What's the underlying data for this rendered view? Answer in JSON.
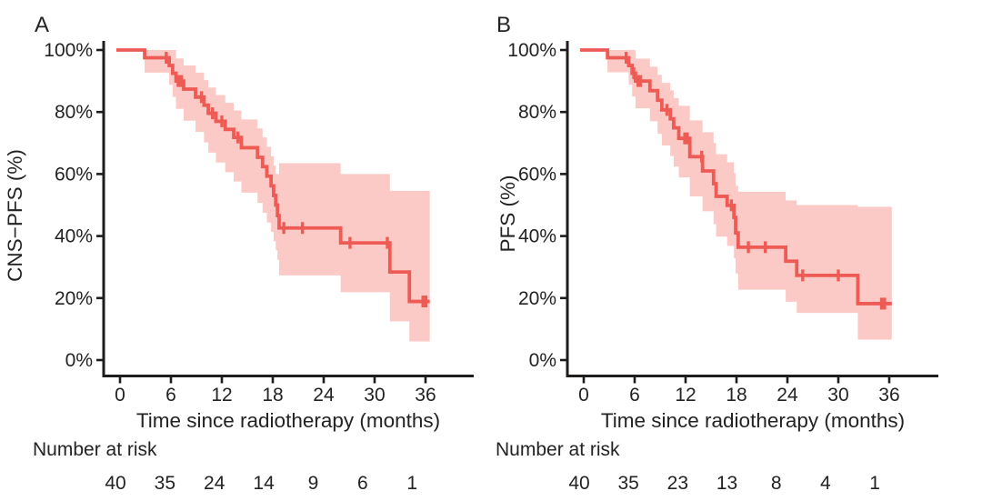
{
  "figure_title": "",
  "colors": {
    "curve": "#ee5b55",
    "band": "#fbcac6",
    "axis": "#1f1c1c",
    "text": "#232323"
  },
  "panels": [
    {
      "label": "A",
      "y_label": "CNS−PFS (%)",
      "x_label": "Time since radiotherapy (months)",
      "y_tick_labels": [
        "0%",
        "20%",
        "40%",
        "60%",
        "80%",
        "100%"
      ],
      "x_tick_labels": [
        "0",
        "6",
        "12",
        "18",
        "24",
        "30",
        "36"
      ],
      "risk_label": "Number at risk",
      "risk_values": [
        "40",
        "35",
        "24",
        "14",
        "9",
        "6",
        "1"
      ]
    },
    {
      "label": "B",
      "y_label": "PFS (%)",
      "x_label": "Time since radiotherapy (months)",
      "y_tick_labels": [
        "0%",
        "20%",
        "40%",
        "60%",
        "80%",
        "100%"
      ],
      "x_tick_labels": [
        "0",
        "6",
        "12",
        "18",
        "24",
        "30",
        "36"
      ],
      "risk_label": "Number at risk",
      "risk_values": [
        "40",
        "35",
        "23",
        "13",
        "8",
        "4",
        "1"
      ]
    }
  ],
  "chart_data": [
    {
      "type": "line",
      "subtype": "kaplan-meier",
      "panel": "A",
      "title": "",
      "xlabel": "Time since radiotherapy (months)",
      "ylabel": "CNS−PFS (%)",
      "xlim": [
        -2,
        42
      ],
      "ylim": [
        0,
        100
      ],
      "x_ticks": [
        0,
        6,
        12,
        18,
        24,
        30,
        36
      ],
      "y_ticks": [
        0,
        20,
        40,
        60,
        80,
        100
      ],
      "grid": false,
      "legend": "none",
      "start_survival": 100,
      "end_time": 36.5,
      "steps": [
        [
          2.9,
          97.5
        ],
        [
          5.8,
          95
        ],
        [
          6.2,
          92.5
        ],
        [
          6.6,
          90
        ],
        [
          7.5,
          87.4
        ],
        [
          8.9,
          84.8
        ],
        [
          9.9,
          82.2
        ],
        [
          10.4,
          79.6
        ],
        [
          11.3,
          77
        ],
        [
          12.4,
          74.4
        ],
        [
          13.4,
          71.8
        ],
        [
          14.3,
          68.5
        ],
        [
          16.2,
          65.4
        ],
        [
          16.8,
          62.4
        ],
        [
          17.3,
          59.3
        ],
        [
          17.8,
          56.2
        ],
        [
          18.1,
          53.1
        ],
        [
          18.35,
          50
        ],
        [
          18.55,
          46.6
        ],
        [
          18.75,
          42.6
        ],
        [
          26,
          37.8
        ],
        [
          31.8,
          28.4
        ],
        [
          34.1,
          18.9
        ]
      ],
      "censor_marks": [
        [
          5.45,
          97.5
        ],
        [
          6.85,
          90
        ],
        [
          7.05,
          90
        ],
        [
          7.25,
          90
        ],
        [
          9.6,
          84.8
        ],
        [
          10.9,
          79.6
        ],
        [
          12,
          77
        ],
        [
          13.9,
          71.8
        ],
        [
          19.3,
          42.6
        ],
        [
          21.5,
          42.6
        ],
        [
          27.1,
          37.8
        ],
        [
          31.5,
          37.8
        ],
        [
          35.7,
          18.9
        ],
        [
          36.05,
          18.9
        ]
      ],
      "ci_steps": [
        [
          2.9,
          92.7,
          100
        ],
        [
          5.8,
          88.8,
          100
        ],
        [
          6.2,
          84.9,
          100
        ],
        [
          6.6,
          81,
          97.3
        ],
        [
          7.5,
          77.2,
          95
        ],
        [
          8.9,
          73.6,
          92.7
        ],
        [
          9.9,
          70.2,
          90.3
        ],
        [
          10.4,
          66.9,
          87.9
        ],
        [
          11.3,
          63.7,
          85.5
        ],
        [
          12.4,
          60.6,
          83
        ],
        [
          13.4,
          57.6,
          80.5
        ],
        [
          14.3,
          54,
          77.6
        ],
        [
          16.2,
          50.7,
          74.7
        ],
        [
          16.8,
          47.5,
          71.8
        ],
        [
          17.3,
          44.3,
          68.8
        ],
        [
          17.8,
          41.3,
          65.8
        ],
        [
          18.1,
          38.3,
          62.7
        ],
        [
          18.35,
          35.4,
          60
        ],
        [
          18.55,
          32.3,
          60
        ],
        [
          18.75,
          27.3,
          63.5
        ],
        [
          26,
          21.9,
          60
        ],
        [
          31.8,
          12.5,
          54.6
        ],
        [
          34.1,
          6,
          54.6
        ]
      ],
      "number_at_risk": {
        "times": [
          0,
          6,
          12,
          18,
          24,
          30,
          36
        ],
        "values": [
          40,
          35,
          24,
          14,
          9,
          6,
          1
        ]
      }
    },
    {
      "type": "line",
      "subtype": "kaplan-meier",
      "panel": "B",
      "title": "",
      "xlabel": "Time since radiotherapy (months)",
      "ylabel": "PFS (%)",
      "xlim": [
        -2,
        42
      ],
      "ylim": [
        0,
        100
      ],
      "x_ticks": [
        0,
        6,
        12,
        18,
        24,
        30,
        36
      ],
      "y_ticks": [
        0,
        20,
        40,
        60,
        80,
        100
      ],
      "grid": false,
      "legend": "none",
      "start_survival": 100,
      "end_time": 36.3,
      "steps": [
        [
          2.8,
          97.5
        ],
        [
          5.3,
          95
        ],
        [
          5.7,
          92.5
        ],
        [
          6.1,
          90
        ],
        [
          7.8,
          86.9
        ],
        [
          8.7,
          83.8
        ],
        [
          9.2,
          80.7
        ],
        [
          10.2,
          77.8
        ],
        [
          10.6,
          74.9
        ],
        [
          11.2,
          71.5
        ],
        [
          12.5,
          65.6
        ],
        [
          14,
          61
        ],
        [
          15.3,
          56.9
        ],
        [
          15.6,
          52.8
        ],
        [
          16.9,
          49.9
        ],
        [
          17.7,
          46
        ],
        [
          17.9,
          41
        ],
        [
          18.2,
          36.4
        ],
        [
          23.8,
          31.9
        ],
        [
          25.1,
          27.3
        ],
        [
          32.3,
          18.2
        ]
      ],
      "censor_marks": [
        [
          5,
          97.5
        ],
        [
          5.9,
          92.5
        ],
        [
          6.4,
          90
        ],
        [
          6.7,
          90
        ],
        [
          9.8,
          80.7
        ],
        [
          11.9,
          71.5
        ],
        [
          12.2,
          71.5
        ],
        [
          13.9,
          65.6
        ],
        [
          17.4,
          49.9
        ],
        [
          19.4,
          36.4
        ],
        [
          21.4,
          36.4
        ],
        [
          25.8,
          27.3
        ],
        [
          30,
          27.3
        ],
        [
          35.1,
          18.2
        ],
        [
          35.45,
          18.2
        ]
      ],
      "ci_steps": [
        [
          2.8,
          92.8,
          100
        ],
        [
          5.3,
          88.8,
          100
        ],
        [
          5.7,
          85,
          100
        ],
        [
          6.1,
          81.2,
          97.2
        ],
        [
          7.8,
          77,
          94.6
        ],
        [
          8.7,
          73,
          92
        ],
        [
          9.2,
          69.2,
          89.4
        ],
        [
          10.2,
          65.8,
          87
        ],
        [
          10.6,
          62.4,
          84.5
        ],
        [
          11.2,
          58.9,
          82
        ],
        [
          12.5,
          52.8,
          77.3
        ],
        [
          14,
          48,
          73.5
        ],
        [
          15.3,
          43.8,
          70
        ],
        [
          15.6,
          39.8,
          66.4
        ],
        [
          16.9,
          36.8,
          63.8
        ],
        [
          17.7,
          32.8,
          60.3
        ],
        [
          17.9,
          27.9,
          56.2
        ],
        [
          18.2,
          22.7,
          54.3
        ],
        [
          23.8,
          18.8,
          51.5
        ],
        [
          25.1,
          15.2,
          50
        ],
        [
          32.3,
          6.6,
          49.4
        ]
      ],
      "number_at_risk": {
        "times": [
          0,
          6,
          12,
          18,
          24,
          30,
          36
        ],
        "values": [
          40,
          35,
          23,
          13,
          8,
          4,
          1
        ]
      }
    }
  ]
}
